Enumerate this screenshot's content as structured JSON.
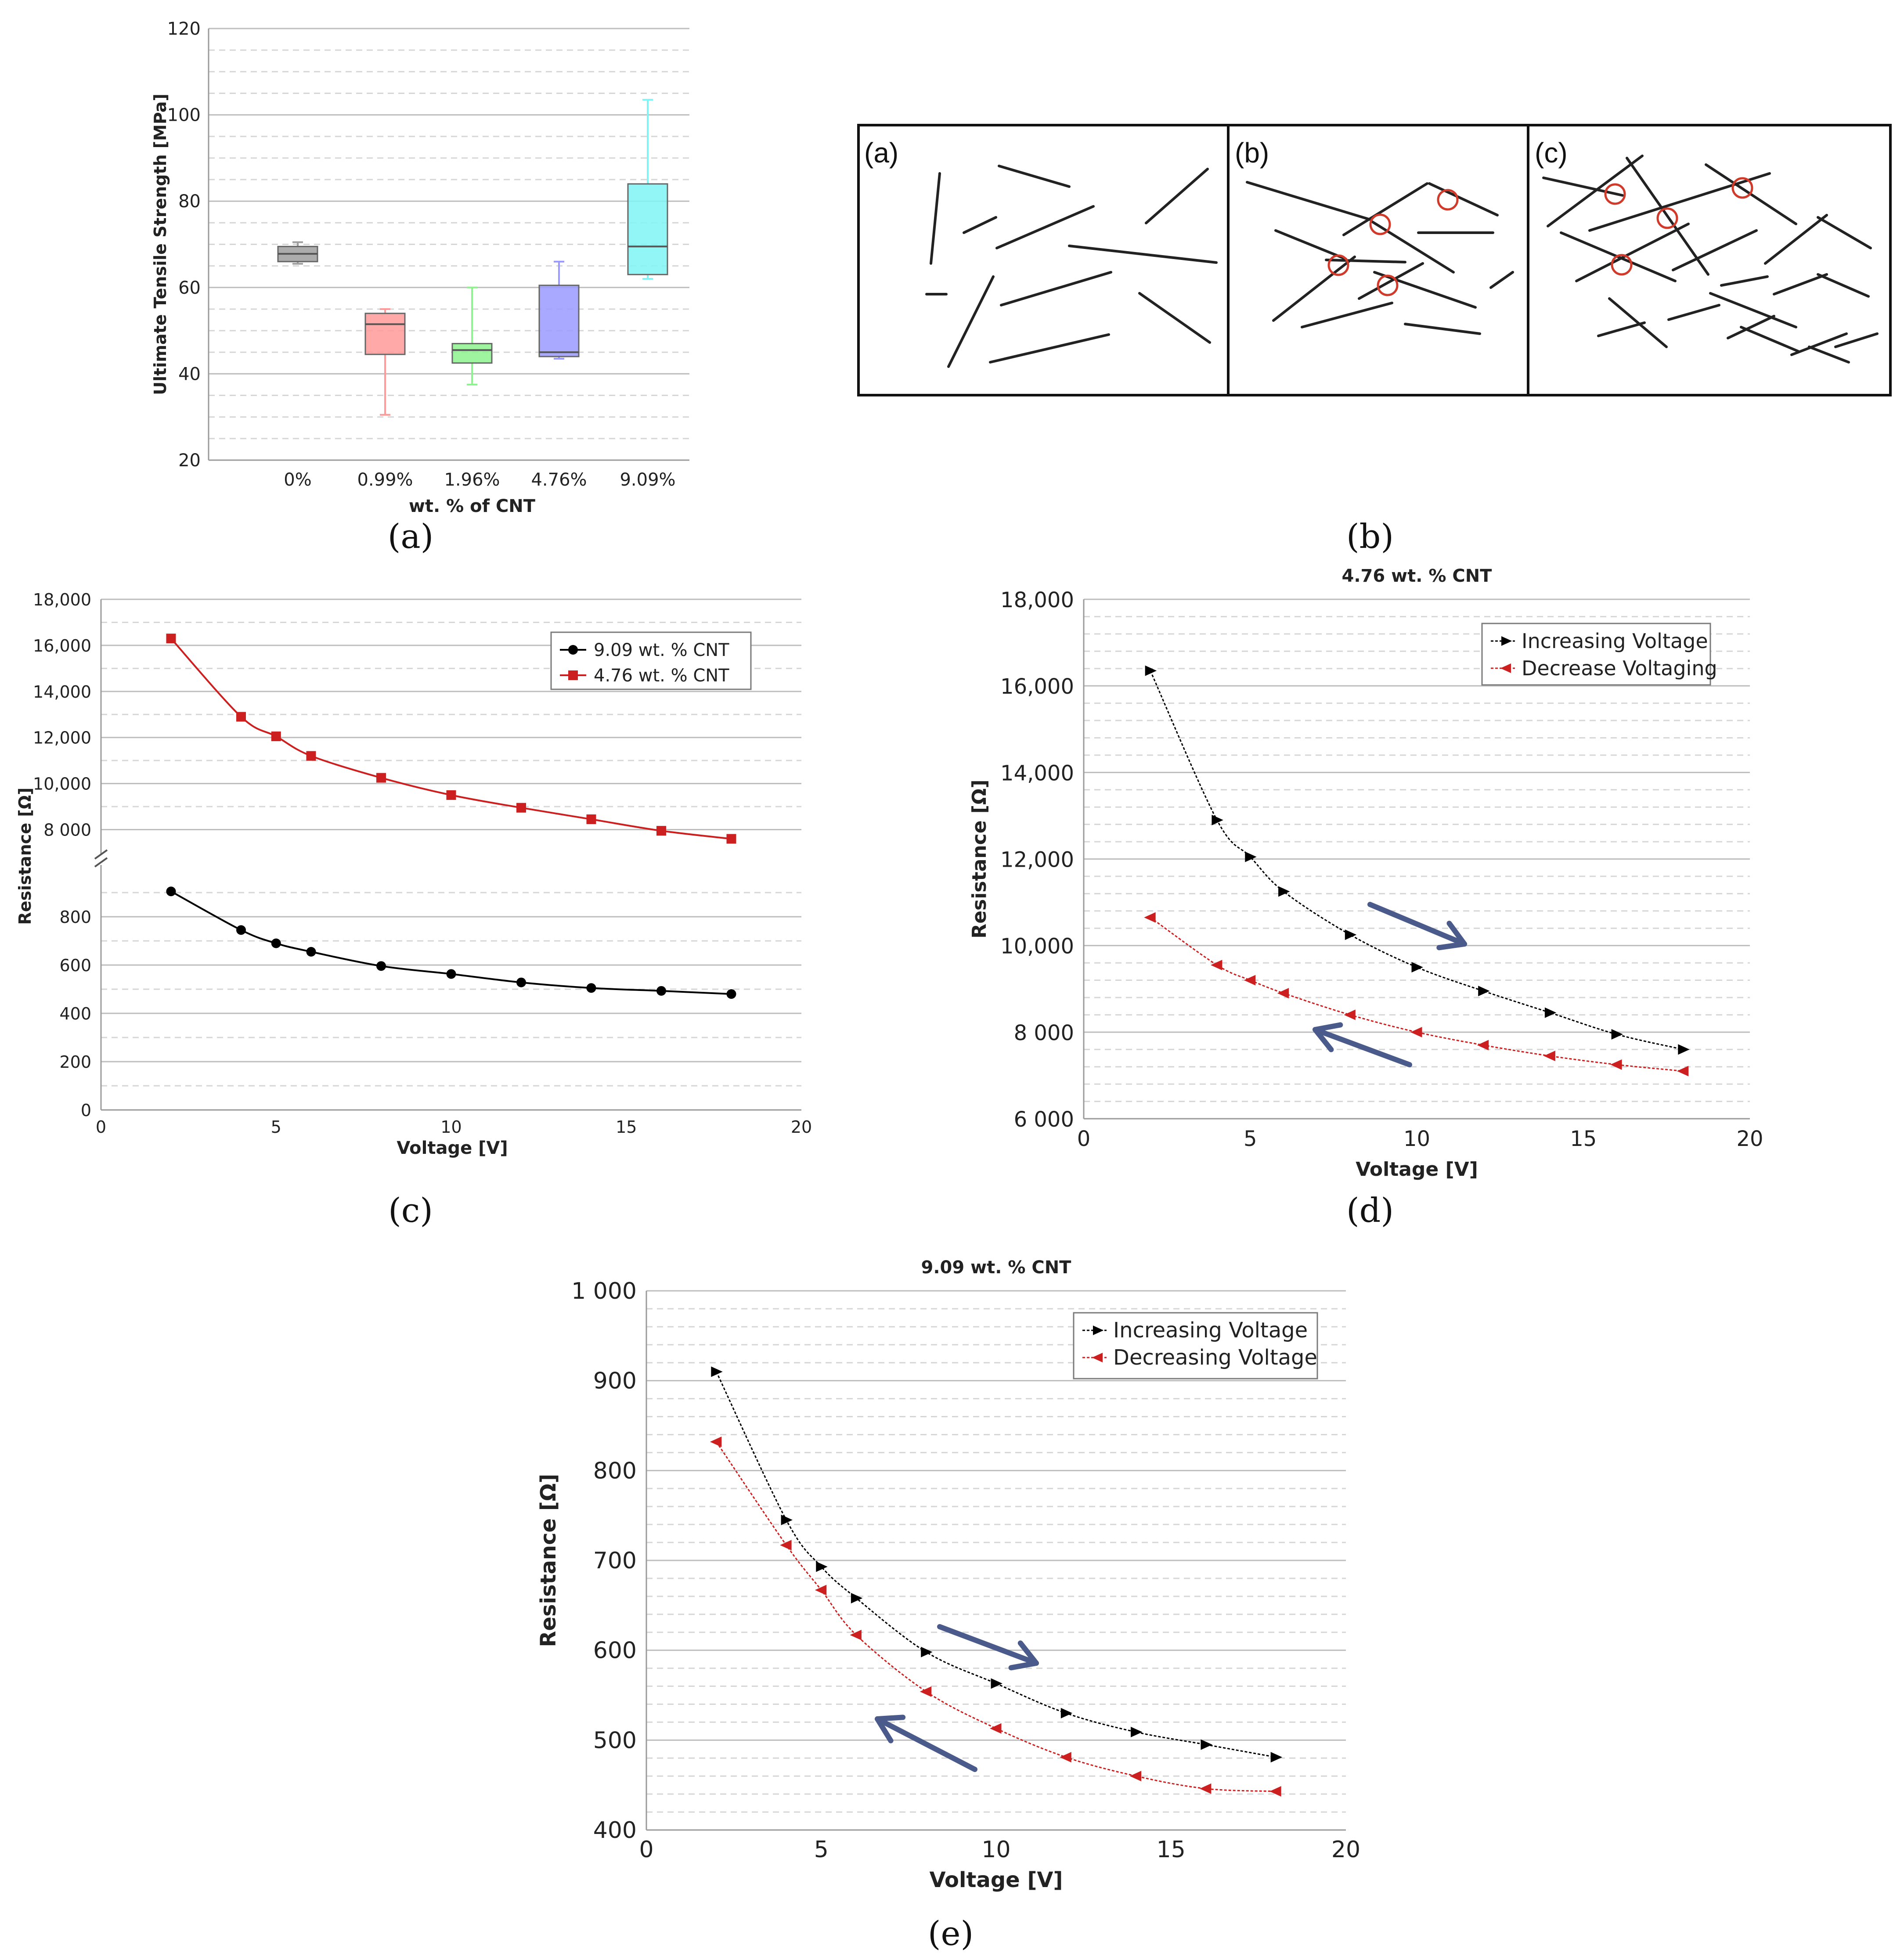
{
  "captions": {
    "a": "(a)",
    "b": "(b)",
    "c": "(c)",
    "d": "(d)",
    "e": "(e)"
  },
  "chart_data": [
    {
      "id": "a",
      "type": "box",
      "title": "",
      "xlabel": "wt. % of CNT",
      "ylabel": "Ultimate Tensile Strength [MPa]",
      "ylim": [
        20,
        120
      ],
      "yticks": [
        20,
        40,
        60,
        80,
        100,
        120
      ],
      "categories": [
        "0%",
        "0.99%",
        "1.96%",
        "4.76%",
        "9.09%"
      ],
      "boxes": [
        {
          "name": "0%",
          "min": 65.5,
          "q1": 66,
          "median": 67.8,
          "q3": 69.5,
          "max": 70.5,
          "color": "#9e9e9e"
        },
        {
          "name": "0.99%",
          "min": 30.5,
          "q1": 44.5,
          "median": 51.5,
          "q3": 54,
          "max": 55,
          "color": "#ff9a9a"
        },
        {
          "name": "1.96%",
          "min": 37.5,
          "q1": 42.5,
          "median": 45.5,
          "q3": 47,
          "max": 60,
          "color": "#8ef28e"
        },
        {
          "name": "4.76%",
          "min": 43.5,
          "q1": 44,
          "median": 45,
          "q3": 60.5,
          "max": 66,
          "color": "#9a9aff"
        },
        {
          "name": "9.09%",
          "min": 62,
          "q1": 63,
          "median": 69.5,
          "q3": 84,
          "max": 103.5,
          "color": "#7ff5f5"
        }
      ]
    },
    {
      "id": "c",
      "type": "line",
      "title": "",
      "xlabel": "Voltage [V]",
      "ylabel": "Resistance [Ω]",
      "xlim": [
        0,
        20
      ],
      "xticks": [
        0,
        5,
        10,
        15,
        20
      ],
      "lower_ylim": [
        0,
        1000
      ],
      "lower_yticks": [
        0,
        200,
        400,
        600,
        800
      ],
      "upper_ylim": [
        7000,
        18000
      ],
      "upper_yticks": [
        8000,
        10000,
        12000,
        14000,
        16000,
        18000
      ],
      "upper_ytick_labels": [
        "8 000",
        "10,000",
        "12,000",
        "14,000",
        "16,000",
        "18,000"
      ],
      "x": [
        2,
        4,
        5,
        6,
        8,
        10,
        12,
        14,
        16,
        18
      ],
      "series": [
        {
          "name": "9.09 wt. % CNT",
          "axis": "lower",
          "color": "#000000",
          "marker": "circle",
          "values": [
            905,
            745,
            690,
            655,
            596,
            563,
            528,
            505,
            493,
            480
          ]
        },
        {
          "name": "4.76 wt. % CNT",
          "axis": "upper",
          "color": "#cc1f1f",
          "marker": "square",
          "values": [
            16300,
            12900,
            12050,
            11200,
            10250,
            9500,
            8950,
            8450,
            7950,
            7600
          ]
        }
      ]
    },
    {
      "id": "d",
      "type": "line",
      "title": "4.76 wt. % CNT",
      "xlabel": "Voltage [V]",
      "ylabel": "Resistance [Ω]",
      "xlim": [
        0,
        20
      ],
      "xticks": [
        0,
        5,
        10,
        15,
        20
      ],
      "ylim": [
        6000,
        18000
      ],
      "yticks": [
        6000,
        8000,
        10000,
        12000,
        14000,
        16000,
        18000
      ],
      "ytick_labels": [
        "6 000",
        "8 000",
        "10,000",
        "12,000",
        "14,000",
        "16,000",
        "18,000"
      ],
      "x": [
        2,
        4,
        5,
        6,
        8,
        10,
        12,
        14,
        16,
        18
      ],
      "series": [
        {
          "name": "Increasing Voltage",
          "color": "#000000",
          "marker": "triangle-right",
          "values": [
            16350,
            12900,
            12050,
            11250,
            10250,
            9500,
            8950,
            8450,
            7950,
            7600
          ]
        },
        {
          "name": "Decrease Voltaging",
          "color": "#cc1f1f",
          "marker": "triangle-left",
          "values": [
            10650,
            9550,
            9200,
            8900,
            8400,
            8000,
            7700,
            7450,
            7250,
            7100
          ]
        }
      ]
    },
    {
      "id": "e",
      "type": "line",
      "title": "9.09 wt. % CNT",
      "xlabel": "Voltage [V]",
      "ylabel": "Resistance [Ω]",
      "xlim": [
        0,
        20
      ],
      "xticks": [
        0,
        5,
        10,
        15,
        20
      ],
      "ylim": [
        400,
        1000
      ],
      "yticks": [
        400,
        500,
        600,
        700,
        800,
        900,
        1000
      ],
      "ytick_labels": [
        "400",
        "500",
        "600",
        "700",
        "800",
        "900",
        "1 000"
      ],
      "x": [
        2,
        4,
        5,
        6,
        8,
        10,
        12,
        14,
        16,
        18
      ],
      "series": [
        {
          "name": "Increasing Voltage",
          "color": "#000000",
          "marker": "triangle-right",
          "values": [
            910,
            745,
            693,
            658,
            598,
            563,
            530,
            509,
            495,
            481
          ]
        },
        {
          "name": "Decreasing Voltage",
          "color": "#cc1f1f",
          "marker": "triangle-left",
          "values": [
            832,
            717,
            667,
            617,
            554,
            513,
            481,
            460,
            446,
            443
          ]
        }
      ]
    }
  ],
  "schematic": {
    "panel_labels": [
      "(a)",
      "(b)",
      "(c)"
    ]
  }
}
